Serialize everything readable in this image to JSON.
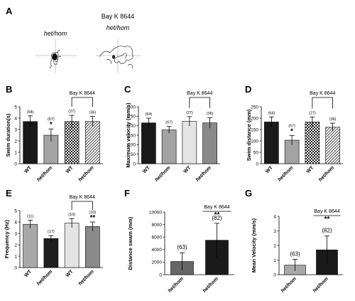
{
  "panel_a": {
    "letter": "A",
    "title": "Bay K 8644",
    "left_label": "het/hom",
    "right_label": "het/hom"
  },
  "chart_data": [
    {
      "panel": "B",
      "type": "bar",
      "ylabel": "Swim duration(s)",
      "ylim": [
        0,
        5
      ],
      "yticks": [
        0,
        1,
        2,
        3,
        4,
        5
      ],
      "categories": [
        "WT",
        "het/hom",
        "WT",
        "het/hom"
      ],
      "values": [
        3.7,
        2.5,
        3.7,
        3.7
      ],
      "errors": [
        0.5,
        0.55,
        0.55,
        0.45
      ],
      "counts": [
        "(64)",
        "(67)",
        "(27)",
        "(36)"
      ],
      "sig": [
        "",
        "*",
        "",
        ""
      ],
      "bracket": {
        "label": "Bay K 8644",
        "from": 2,
        "to": 3,
        "sig": ""
      }
    },
    {
      "panel": "C",
      "type": "bar",
      "ylabel": "Maximum velocity (mm/s)",
      "ylim": [
        0,
        300
      ],
      "yticks": [
        0,
        50,
        100,
        150,
        200,
        250,
        300
      ],
      "categories": [
        "WT",
        "het/hom",
        "WT",
        "het/hom"
      ],
      "values": [
        215,
        178,
        223,
        215
      ],
      "errors": [
        25,
        18,
        25,
        28
      ],
      "counts": [
        "(64)",
        "(67)",
        "(27)",
        "(36)"
      ],
      "sig": [
        "",
        "",
        "",
        ""
      ],
      "bracket": {
        "label": "Bay K 8644",
        "from": 2,
        "to": 3,
        "sig": ""
      }
    },
    {
      "panel": "D",
      "type": "bar",
      "ylabel": "Swim distance (mm)",
      "ylim": [
        0,
        250
      ],
      "yticks": [
        0,
        50,
        100,
        150,
        200,
        250
      ],
      "categories": [
        "WT",
        "het/hom",
        "WT",
        "het/hom"
      ],
      "values": [
        183,
        103,
        183,
        160
      ],
      "errors": [
        22,
        20,
        22,
        18
      ],
      "counts": [
        "(64)",
        "(67)",
        "(27)",
        "(36)"
      ],
      "sig": [
        "",
        "*",
        "",
        ""
      ],
      "bracket": {
        "label": "Bay K 8644",
        "from": 2,
        "to": 3,
        "sig": ""
      }
    },
    {
      "panel": "E",
      "type": "bar",
      "ylabel": "Frequency (Hz)",
      "ylim": [
        0,
        5
      ],
      "yticks": [
        0,
        1,
        2,
        3,
        4,
        5
      ],
      "categories": [
        "WT",
        "het/hom",
        "WT",
        "het/hom"
      ],
      "values": [
        3.8,
        2.55,
        3.9,
        3.6
      ],
      "errors": [
        0.35,
        0.25,
        0.4,
        0.4
      ],
      "counts": [
        "(11)",
        "(17)",
        "(10)",
        "(10)"
      ],
      "sig": [
        "",
        "",
        "",
        "**"
      ],
      "bracket": {
        "label": "Bay K 8644",
        "from": 2,
        "to": 3,
        "sig": ""
      }
    },
    {
      "panel": "F",
      "type": "bar",
      "ylabel": "Distance swam (mm)",
      "ylim": [
        0,
        10000
      ],
      "yticks": [
        0,
        2000,
        4000,
        6000,
        8000,
        10000
      ],
      "categories": [
        "het/hom",
        "het/hom"
      ],
      "values": [
        2100,
        5500
      ],
      "errors": [
        1400,
        2700
      ],
      "counts": [
        "(63)",
        "(82)"
      ],
      "sig": [
        "",
        ""
      ],
      "bracket": {
        "label": "Bay K 8644",
        "from": 1,
        "to": 1,
        "sig": "**"
      }
    },
    {
      "panel": "G",
      "type": "bar",
      "ylabel": "Mean Velocity (mm/s)",
      "ylim": [
        0,
        4
      ],
      "yticks": [
        0,
        1,
        2,
        3,
        4
      ],
      "categories": [
        "het/hom",
        "het/hom"
      ],
      "values": [
        0.65,
        1.7
      ],
      "errors": [
        0.4,
        0.95
      ],
      "counts": [
        "(63)",
        "(82)"
      ],
      "sig": [
        "",
        ""
      ],
      "bracket": {
        "label": "Bay K 8644",
        "from": 1,
        "to": 1,
        "sig": "**"
      }
    }
  ]
}
